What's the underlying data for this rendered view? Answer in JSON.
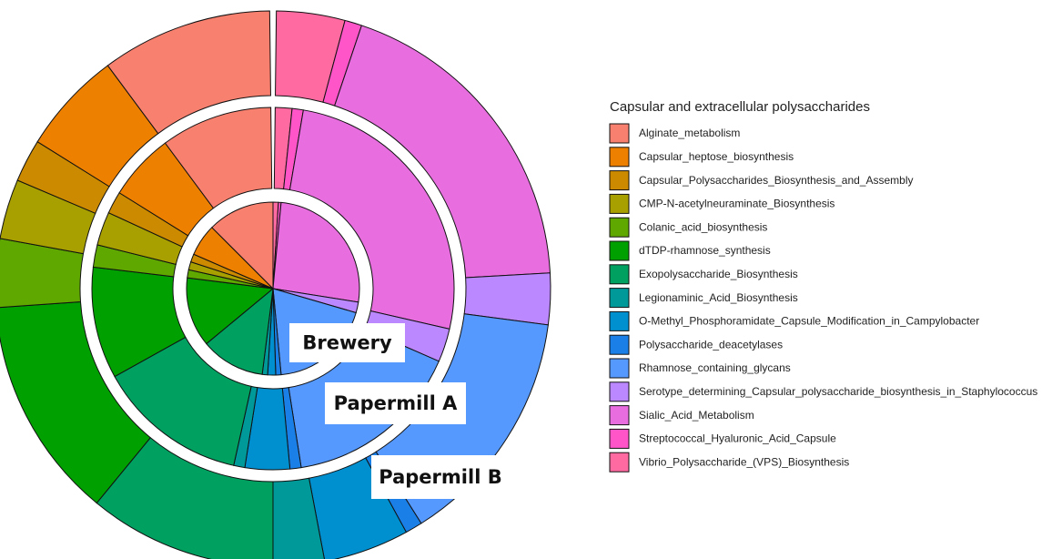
{
  "chart_data": {
    "type": "ring-pie",
    "legend_title": "Capsular and extracellular polysaccharides",
    "categories": [
      "Alginate_metabolism",
      "Capsular_heptose_biosynthesis",
      "Capsular_Polysaccharides_Biosynthesis_and_Assembly",
      "CMP-N-acetylneuraminate_Biosynthesis",
      "Colanic_acid_biosynthesis",
      "dTDP-rhamnose_synthesis",
      "Exopolysaccharide_Biosynthesis",
      "Legionaminic_Acid_Biosynthesis",
      "O-Methyl_Phosphoramidate_Capsule_Modification_in_Campylobacter",
      "Polysaccharide_deacetylases",
      "Rhamnose_containing_glycans",
      "Serotype_determining_Capsular_polysaccharide_biosynthesis_in_Staphylococcus",
      "Sialic_Acid_Metabolism",
      "Streptococcal_Hyaluronic_Acid_Capsule",
      "Vibrio_Polysaccharide_(VPS)_Biosynthesis"
    ],
    "colors": [
      "#f8806f",
      "#ee8000",
      "#cc8a00",
      "#a8a000",
      "#5fa800",
      "#00a000",
      "#00a060",
      "#00999a",
      "#0090d0",
      "#1a80e8",
      "#5599ff",
      "#bb88ff",
      "#e86ee0",
      "#ff55c8",
      "#ff6aa0"
    ],
    "series": [
      {
        "name": "Brewery",
        "values": [
          12.5,
          6,
          1.5,
          1.5,
          1.5,
          13,
          12,
          1,
          1.5,
          1,
          19,
          2,
          26,
          0.5,
          1
        ]
      },
      {
        "name": "Papermill A",
        "values": [
          10,
          6,
          2,
          3,
          2,
          10,
          13.5,
          1,
          4,
          1,
          16,
          3,
          26,
          1,
          1.5
        ]
      },
      {
        "name": "Papermill B",
        "values": [
          10,
          6,
          2.5,
          3.5,
          4,
          13,
          11,
          3,
          5,
          1,
          14,
          3,
          19,
          1,
          4
        ]
      }
    ]
  }
}
